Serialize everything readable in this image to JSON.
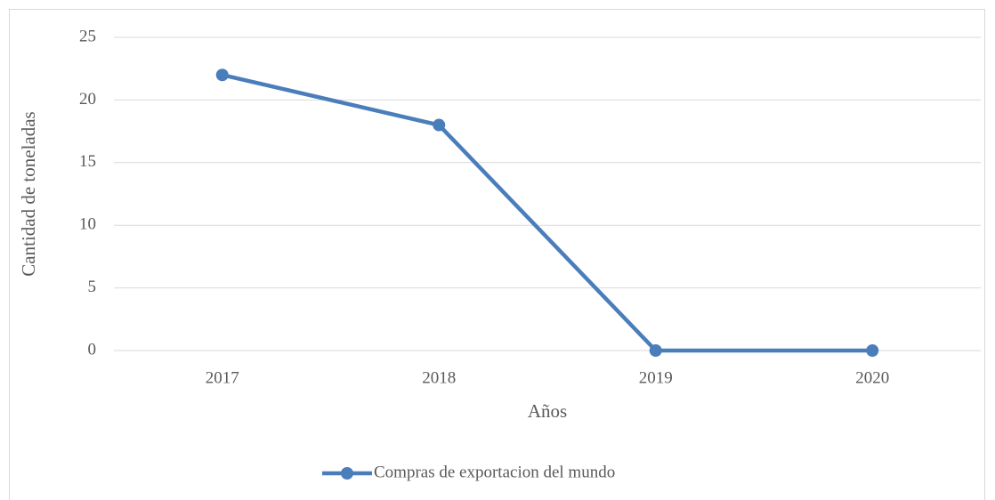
{
  "chart_data": {
    "type": "line",
    "categories": [
      "2017",
      "2018",
      "2019",
      "2020"
    ],
    "series": [
      {
        "name": "Compras de exportacion del mundo",
        "color": "#4a7ebb",
        "values": [
          22,
          18,
          0,
          0
        ]
      }
    ],
    "xlabel": "Años",
    "ylabel": "Cantidad de toneladas",
    "ylim": [
      0,
      25
    ],
    "yticks": [
      0,
      5,
      10,
      15,
      20,
      25
    ],
    "grid": true,
    "legend": "bottom"
  }
}
